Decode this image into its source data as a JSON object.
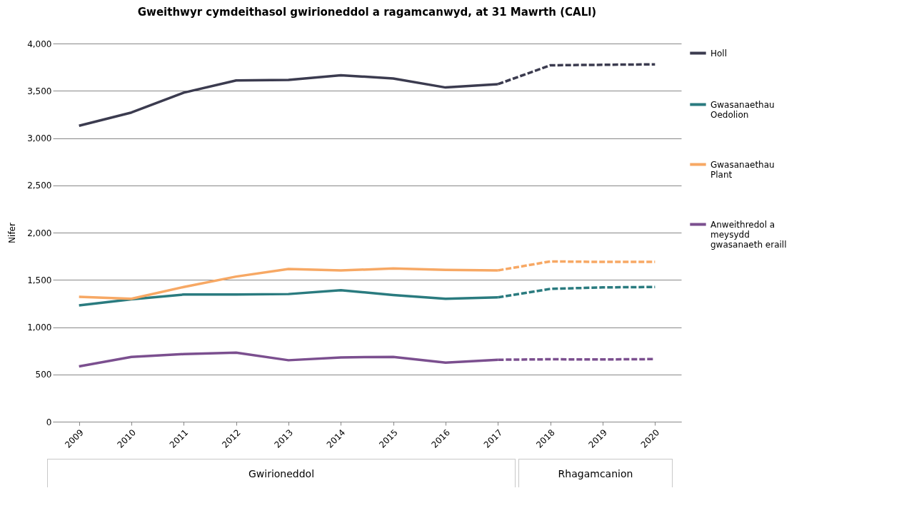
{
  "chart_data": {
    "type": "line",
    "title": "Gweithwyr cymdeithasol gwirioneddol a ragamcanwyd, at 31 Mawrth (CALl)",
    "ylabel": "Nifer",
    "categories": [
      "2009",
      "2010",
      "2011",
      "2012",
      "2013",
      "2014",
      "2015",
      "2016",
      "2017",
      "2018",
      "2019",
      "2020"
    ],
    "series": [
      {
        "name": "Holl",
        "color": "#3b3b4f",
        "line_style": "solid",
        "values": [
          3130,
          3270,
          3480,
          3610,
          3615,
          3665,
          3630,
          3535,
          3570,
          null,
          null,
          null
        ]
      },
      {
        "name": "Gwasanaethau Oedolion",
        "color": "#2a7b7f",
        "line_style": "solid",
        "values": [
          1230,
          1295,
          1345,
          1345,
          1350,
          1390,
          1340,
          1300,
          1315,
          null,
          null,
          null
        ]
      },
      {
        "name": "Gwasanaethau Plant",
        "color": "#f7a864",
        "line_style": "solid",
        "values": [
          1320,
          1300,
          1425,
          1535,
          1615,
          1600,
          1620,
          1605,
          1600,
          null,
          null,
          null
        ]
      },
      {
        "name": "Anweithredol a meysydd gwasanaeth eraill",
        "color": "#7b4f8f",
        "line_style": "solid",
        "values": [
          585,
          685,
          715,
          730,
          650,
          680,
          685,
          625,
          655,
          null,
          null,
          null
        ]
      },
      {
        "color": "#3b3b4f",
        "line_style": "dashed",
        "values": [
          null,
          null,
          null,
          null,
          null,
          null,
          null,
          null,
          3570,
          3770,
          3775,
          3780
        ]
      },
      {
        "color": "#2a7b7f",
        "line_style": "dashed",
        "values": [
          null,
          null,
          null,
          null,
          null,
          null,
          null,
          null,
          1315,
          1405,
          1420,
          1425
        ]
      },
      {
        "color": "#f7a864",
        "line_style": "dashed",
        "values": [
          null,
          null,
          null,
          null,
          null,
          null,
          null,
          null,
          1600,
          1695,
          1690,
          1690
        ]
      },
      {
        "color": "#7b4f8f",
        "line_style": "dashed",
        "values": [
          null,
          null,
          null,
          null,
          null,
          null,
          null,
          null,
          655,
          660,
          658,
          662
        ]
      }
    ],
    "ylim": [
      0,
      4000
    ],
    "yticks": [
      0,
      500,
      {
        "value": 1000,
        "label": "1,000"
      },
      {
        "value": 1500,
        "label": "1,500"
      },
      {
        "value": 2000,
        "label": "2,000"
      },
      {
        "value": 2500,
        "label": "2,500"
      },
      {
        "value": 3000,
        "label": "3,000"
      },
      {
        "value": 3500,
        "label": "3,500"
      },
      {
        "value": 4000,
        "label": "4,000"
      }
    ],
    "grid": "y",
    "legend": "right",
    "annotations": [
      "Gwirioneddol",
      "Rhagamcanion"
    ]
  }
}
